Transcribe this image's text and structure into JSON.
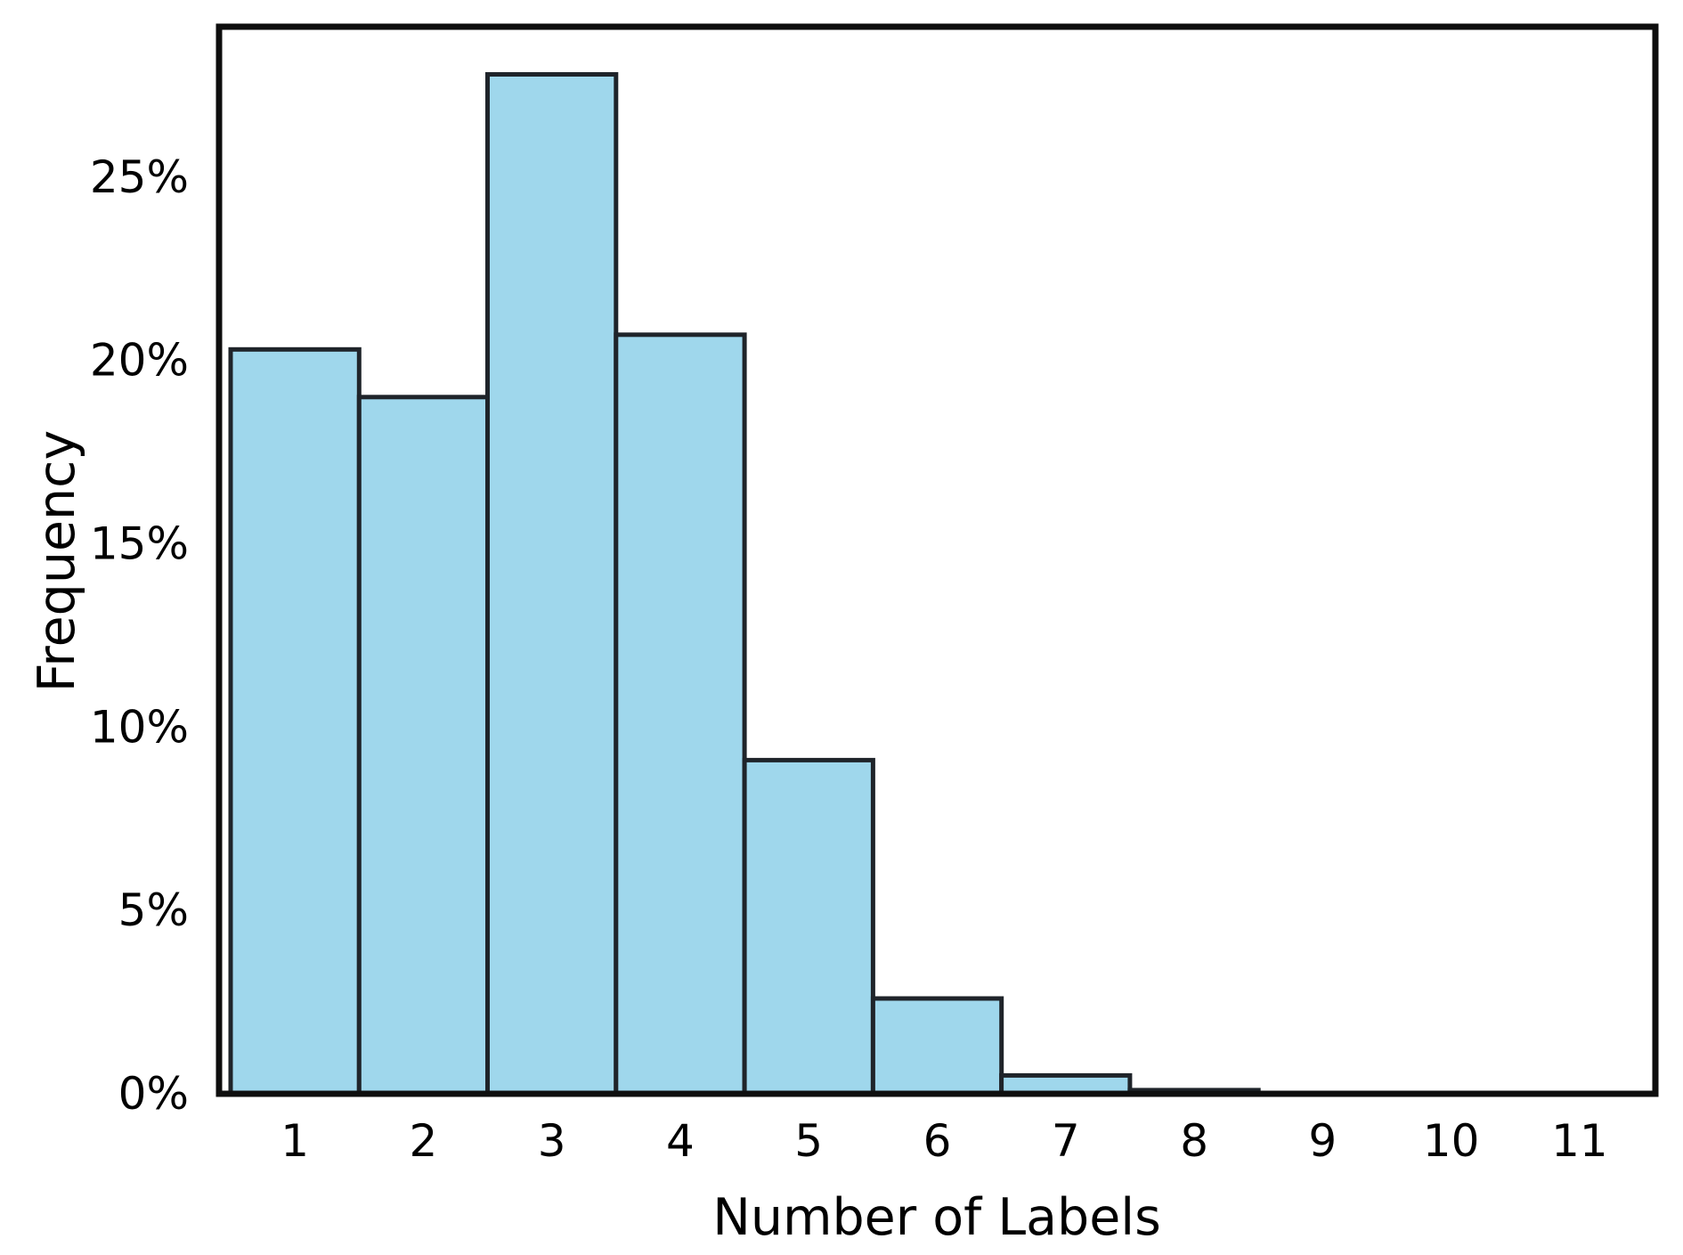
{
  "chart_data": {
    "type": "bar",
    "subtype": "histogram",
    "title": "",
    "xlabel": "Number of Labels",
    "ylabel": "Frequency",
    "categories": [
      1,
      2,
      3,
      4,
      5,
      6,
      7,
      8,
      9,
      10,
      11
    ],
    "values": [
      20.3,
      19.0,
      27.8,
      20.7,
      9.1,
      2.6,
      0.5,
      0.1,
      0,
      0,
      0
    ],
    "value_unit": "%",
    "bar_width": 1.0,
    "x_ticklabels": [
      "1",
      "2",
      "3",
      "4",
      "5",
      "6",
      "7",
      "8",
      "9",
      "10",
      "11"
    ],
    "y_tick_values": [
      0,
      5,
      10,
      15,
      20,
      25
    ],
    "y_ticklabels": [
      "0%",
      "5%",
      "10%",
      "15%",
      "20%",
      "25%"
    ],
    "xlim": [
      0.41,
      11.59
    ],
    "ylim": [
      0,
      29.1
    ],
    "grid": false,
    "legend": null,
    "colors": {
      "bar_fill": "#9fd7ec",
      "bar_edge": "#1f242a",
      "spine": "#0e0e0e",
      "text": "#000000",
      "background": "#ffffff"
    }
  }
}
